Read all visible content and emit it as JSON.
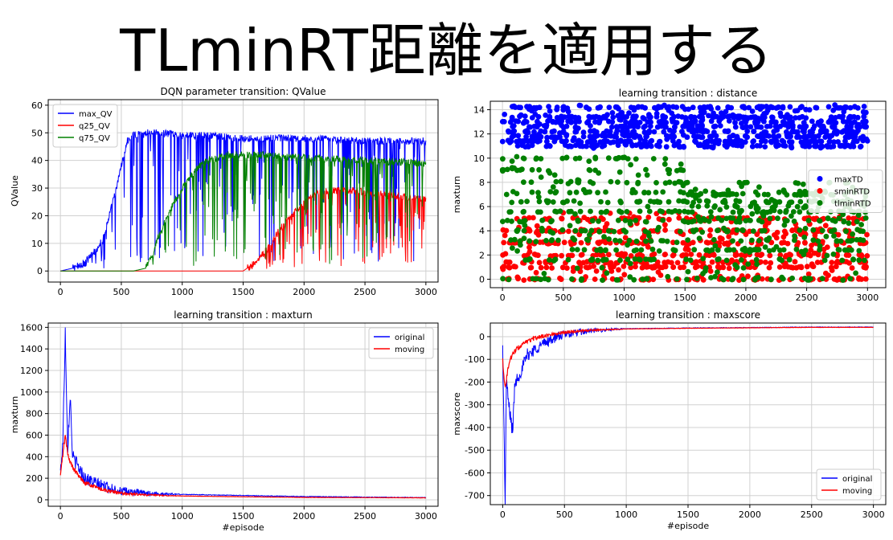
{
  "slide": {
    "title": "TLminRT距離を適用する"
  },
  "chart_data": [
    {
      "id": "qvalue",
      "type": "line",
      "title": "DQN parameter transition: QValue",
      "xlabel": "",
      "ylabel": "QValue",
      "xlim": [
        -100,
        3100
      ],
      "ylim": [
        -4,
        62
      ],
      "xticks": [
        0,
        500,
        1000,
        1500,
        2000,
        2500,
        3000
      ],
      "yticks": [
        0,
        10,
        20,
        30,
        40,
        50,
        60
      ],
      "grid": true,
      "legend": "top-left",
      "series": [
        {
          "name": "max_QV",
          "color": "#0000ff",
          "x": [
            0,
            100,
            200,
            300,
            350,
            400,
            450,
            500,
            550,
            600,
            700,
            800,
            1000,
            1200,
            1500,
            2000,
            2500,
            3000
          ],
          "y": [
            0,
            1,
            3,
            8,
            12,
            20,
            28,
            38,
            47,
            49,
            50,
            50,
            49,
            49,
            48,
            48,
            47,
            47
          ]
        },
        {
          "name": "q25_QV",
          "color": "#ff0000",
          "x": [
            0,
            500,
            1000,
            1300,
            1500,
            1600,
            1700,
            1800,
            1900,
            2000,
            2100,
            2200,
            2400,
            2600,
            2800,
            3000
          ],
          "y": [
            0,
            0,
            0,
            0,
            0,
            3,
            8,
            15,
            20,
            25,
            28,
            29,
            29,
            28,
            27,
            26
          ]
        },
        {
          "name": "q75_QV",
          "color": "#008000",
          "x": [
            0,
            500,
            600,
            700,
            750,
            800,
            900,
            1000,
            1100,
            1200,
            1400,
            1600,
            2000,
            2500,
            3000
          ],
          "y": [
            0,
            0,
            0,
            1,
            5,
            12,
            22,
            30,
            36,
            40,
            42,
            42,
            41,
            40,
            39
          ]
        }
      ]
    },
    {
      "id": "distance",
      "type": "scatter",
      "title": "learning transition : distance",
      "xlabel": "",
      "ylabel": "maxturn",
      "xlim": [
        -100,
        3150
      ],
      "ylim": [
        -0.7,
        14.7
      ],
      "xticks": [
        0,
        500,
        1000,
        1500,
        2000,
        2500,
        3000
      ],
      "yticks": [
        0,
        2,
        4,
        6,
        8,
        10,
        12,
        14
      ],
      "grid": true,
      "legend": "center-right",
      "series": [
        {
          "name": "maxTD",
          "color": "#0000ff",
          "x_range": [
            0,
            3000
          ],
          "levels": [
            11,
            11.4,
            11.8,
            12.2,
            12.6,
            13,
            13.4,
            14.2
          ],
          "spread": [
            10.8,
            14.4
          ]
        },
        {
          "name": "sminRTD",
          "color": "#ff0000",
          "x_range": [
            0,
            3000
          ],
          "levels": [
            0,
            1,
            1.4,
            2,
            3,
            4,
            5
          ],
          "spread": [
            0,
            5.5
          ]
        },
        {
          "name": "tlminRTD",
          "color": "#008000",
          "x_range": [
            0,
            3000
          ],
          "levels": [
            0,
            1.6,
            2.4,
            3.2,
            4,
            4.8,
            5.6,
            6.4,
            7.2,
            8,
            9,
            10
          ],
          "spread": [
            0,
            10.5
          ]
        }
      ]
    },
    {
      "id": "maxturn",
      "type": "line",
      "title": "learning transition : maxturn",
      "xlabel": "#episode",
      "ylabel": "maxturn",
      "xlim": [
        -100,
        3100
      ],
      "ylim": [
        -60,
        1640
      ],
      "xticks": [
        0,
        500,
        1000,
        1500,
        2000,
        2500,
        3000
      ],
      "yticks": [
        0,
        200,
        400,
        600,
        800,
        1000,
        1200,
        1400,
        1600
      ],
      "grid": true,
      "legend": "top-right",
      "series": [
        {
          "name": "original",
          "color": "#0000ff",
          "x": [
            0,
            20,
            40,
            60,
            80,
            100,
            150,
            200,
            300,
            400,
            500,
            700,
            1000,
            1500,
            2000,
            2500,
            3000
          ],
          "y": [
            250,
            550,
            1560,
            500,
            980,
            400,
            300,
            200,
            150,
            110,
            80,
            60,
            50,
            40,
            30,
            25,
            20
          ]
        },
        {
          "name": "moving",
          "color": "#ff0000",
          "x": [
            0,
            20,
            40,
            60,
            80,
            100,
            150,
            200,
            300,
            400,
            500,
            700,
            1000,
            1500,
            2000,
            2500,
            3000
          ],
          "y": [
            220,
            420,
            600,
            420,
            360,
            300,
            220,
            160,
            110,
            80,
            60,
            45,
            35,
            28,
            22,
            20,
            18
          ]
        }
      ]
    },
    {
      "id": "maxscore",
      "type": "line",
      "title": "learning transition : maxscore",
      "xlabel": "#episode",
      "ylabel": "maxscore",
      "xlim": [
        -100,
        3100
      ],
      "ylim": [
        -740,
        60
      ],
      "xticks": [
        0,
        500,
        1000,
        1500,
        2000,
        2500,
        3000
      ],
      "yticks": [
        0,
        -100,
        -200,
        -300,
        -400,
        -500,
        -600,
        -700
      ],
      "grid": true,
      "legend": "bottom-right",
      "series": [
        {
          "name": "original",
          "color": "#0000ff",
          "x": [
            0,
            20,
            30,
            50,
            80,
            100,
            150,
            200,
            300,
            400,
            500,
            700,
            1000,
            1500,
            2000,
            2500,
            3000
          ],
          "y": [
            -50,
            -720,
            -200,
            -300,
            -420,
            -200,
            -150,
            -80,
            -40,
            -10,
            10,
            25,
            35,
            38,
            40,
            42,
            42
          ]
        },
        {
          "name": "moving",
          "color": "#ff0000",
          "x": [
            0,
            20,
            40,
            60,
            80,
            100,
            150,
            200,
            300,
            400,
            500,
            700,
            1000,
            1500,
            2000,
            2500,
            3000
          ],
          "y": [
            -100,
            -230,
            -150,
            -100,
            -80,
            -60,
            -40,
            -20,
            0,
            10,
            20,
            28,
            34,
            37,
            39,
            41,
            41
          ]
        }
      ]
    }
  ]
}
